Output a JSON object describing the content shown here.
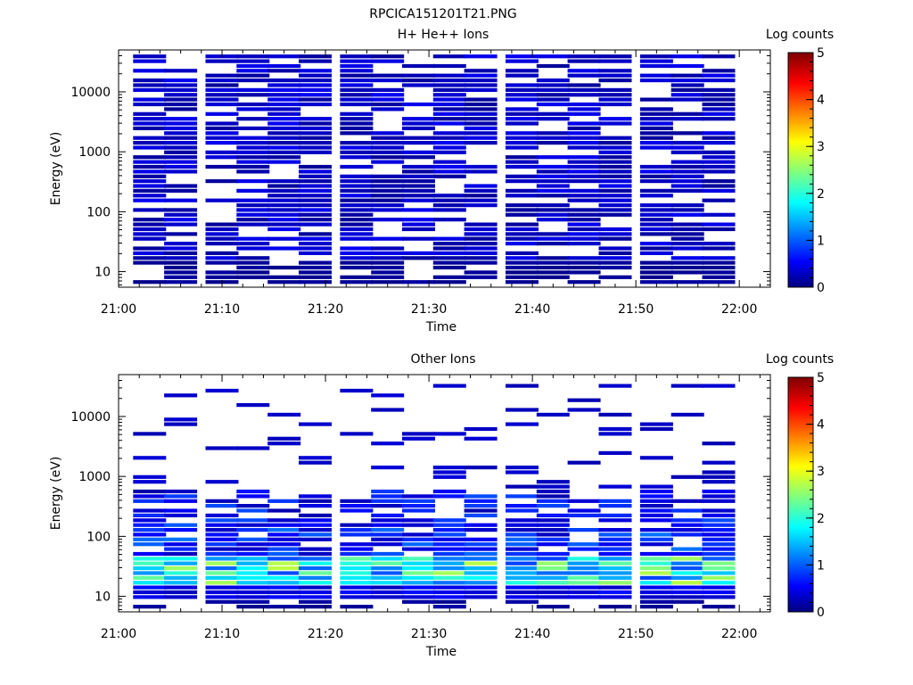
{
  "figure": {
    "title": "RPCICA151201T21.PNG"
  },
  "colors": {
    "jet_stops": [
      "#00007f",
      "#0000ff",
      "#00ffff",
      "#ffff00",
      "#ff0000",
      "#7f0000"
    ],
    "background": "#ffffff"
  },
  "chart_data": [
    {
      "type": "heatmap",
      "title": "H+ He++ Ions",
      "xlabel": "Time",
      "ylabel": "Energy (eV)",
      "y_scale": "log",
      "xlim": [
        "21:00",
        "22:03"
      ],
      "ylim": [
        5.5,
        50000
      ],
      "x_ticks": [
        "21:00",
        "21:10",
        "21:20",
        "21:30",
        "21:40",
        "21:50",
        "22:00"
      ],
      "y_ticks": [
        "10",
        "100",
        "1000",
        "10000"
      ],
      "time_bins": [
        "21:03",
        "21:06",
        "21:10",
        "21:13",
        "21:16",
        "21:19",
        "21:23",
        "21:26",
        "21:29",
        "21:32",
        "21:35",
        "21:39",
        "21:42",
        "21:45",
        "21:48",
        "21:52",
        "21:55",
        "21:58"
      ],
      "colorbar": {
        "label": "Log counts",
        "range": [
          0,
          5
        ],
        "ticks": [
          "0",
          "1",
          "2",
          "3",
          "4",
          "5"
        ]
      },
      "cells": "Log counts per time bin and energy channel, approximately 0.0 to 0.6 (blue/dark blue) across 10 eV to 40000 eV, with many empty (white) channels; channels near 10 eV are dark blue (~0.1)."
    },
    {
      "type": "heatmap",
      "title": "Other Ions",
      "xlabel": "Time",
      "ylabel": "Energy (eV)",
      "y_scale": "log",
      "xlim": [
        "21:00",
        "22:03"
      ],
      "ylim": [
        5.5,
        50000
      ],
      "x_ticks": [
        "21:00",
        "21:10",
        "21:20",
        "21:30",
        "21:40",
        "21:50",
        "22:00"
      ],
      "y_ticks": [
        "10",
        "100",
        "1000",
        "10000"
      ],
      "time_bins": [
        "21:03",
        "21:06",
        "21:10",
        "21:13",
        "21:16",
        "21:19",
        "21:23",
        "21:26",
        "21:29",
        "21:32",
        "21:35",
        "21:39",
        "21:42",
        "21:45",
        "21:48",
        "21:52",
        "21:55",
        "21:58"
      ],
      "colorbar": {
        "label": "Log counts",
        "range": [
          0,
          5
        ],
        "ticks": [
          "0",
          "1",
          "2",
          "3",
          "4",
          "5"
        ]
      },
      "cells": "Log counts mostly 0.3 to 1.0 between 10 eV and 700 eV with a band of 1.5 to 2.9 near 15 to 40 eV (cyan/green/yellow); sparse single lines (~0.3) at higher energies up to 40000 eV."
    }
  ]
}
